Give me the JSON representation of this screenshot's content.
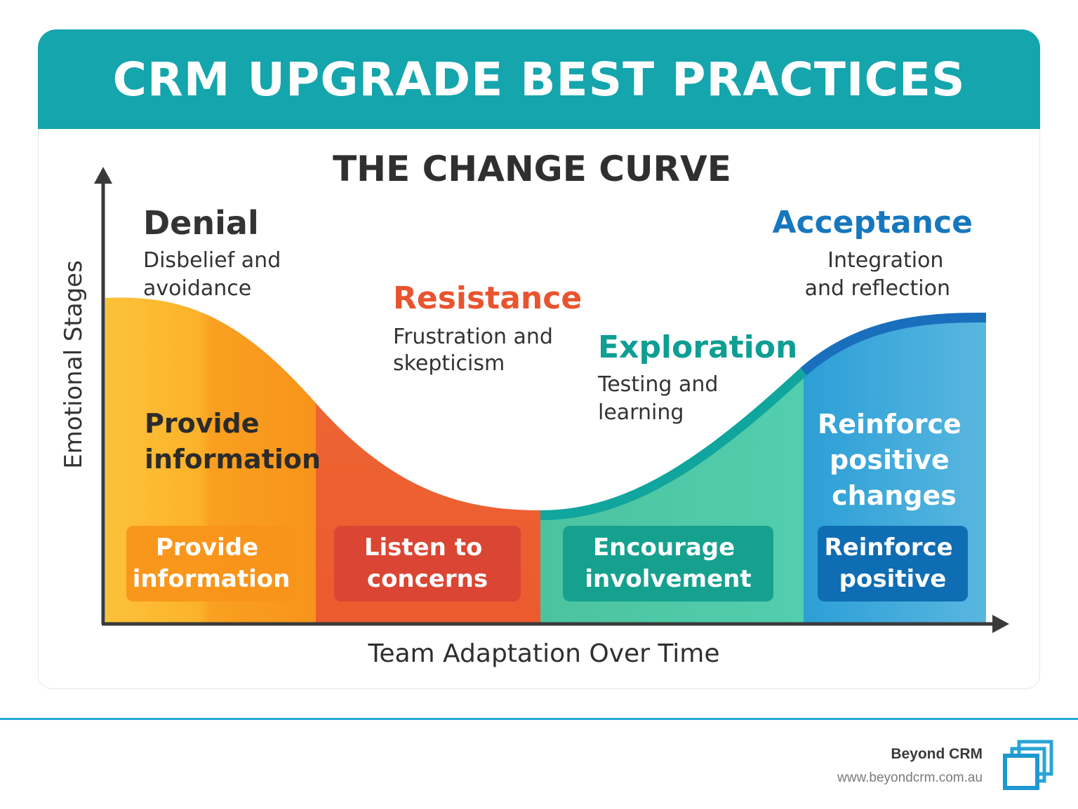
{
  "header": {
    "title": "CRM UPGRADE BEST PRACTICES"
  },
  "diagram": {
    "title": "THE CHANGE CURVE",
    "y_axis_label": "Emotional Stages",
    "x_axis_label": "Team Adaptation Over Time",
    "stages": [
      {
        "name": "Denial",
        "description_lines": [
          "Disbelief and",
          "avoidance"
        ],
        "action_lines": [
          "Provide",
          "information"
        ],
        "strategy_lines": [
          "Provide",
          "information"
        ],
        "color": "#f8a21c",
        "title_color": "#333333"
      },
      {
        "name": "Resistance",
        "description_lines": [
          "Frustration and",
          "skepticism"
        ],
        "strategy_lines": [
          "Listen to",
          "concerns"
        ],
        "color": "#ef6433",
        "title_color": "#e9542e"
      },
      {
        "name": "Exploration",
        "description_lines": [
          "Testing and",
          "learning"
        ],
        "strategy_lines": [
          "Encourage",
          "involvement"
        ],
        "color": "#4cc9a3",
        "title_color": "#0e9e93"
      },
      {
        "name": "Acceptance",
        "description_lines": [
          "Integration",
          "and reflection"
        ],
        "action_lines": [
          "Reinforce",
          "positive",
          "changes"
        ],
        "strategy_lines": [
          "Reinforce",
          "positive"
        ],
        "color": "#41a9dc",
        "title_color": "#1777bd"
      }
    ]
  },
  "footer": {
    "brand_name": "Beyond CRM",
    "website": "www.beyondcrm.com.au"
  },
  "colors": {
    "banner": "#14a5ad",
    "footer_line": "#26a9d1",
    "axis": "#3a3a3a"
  }
}
